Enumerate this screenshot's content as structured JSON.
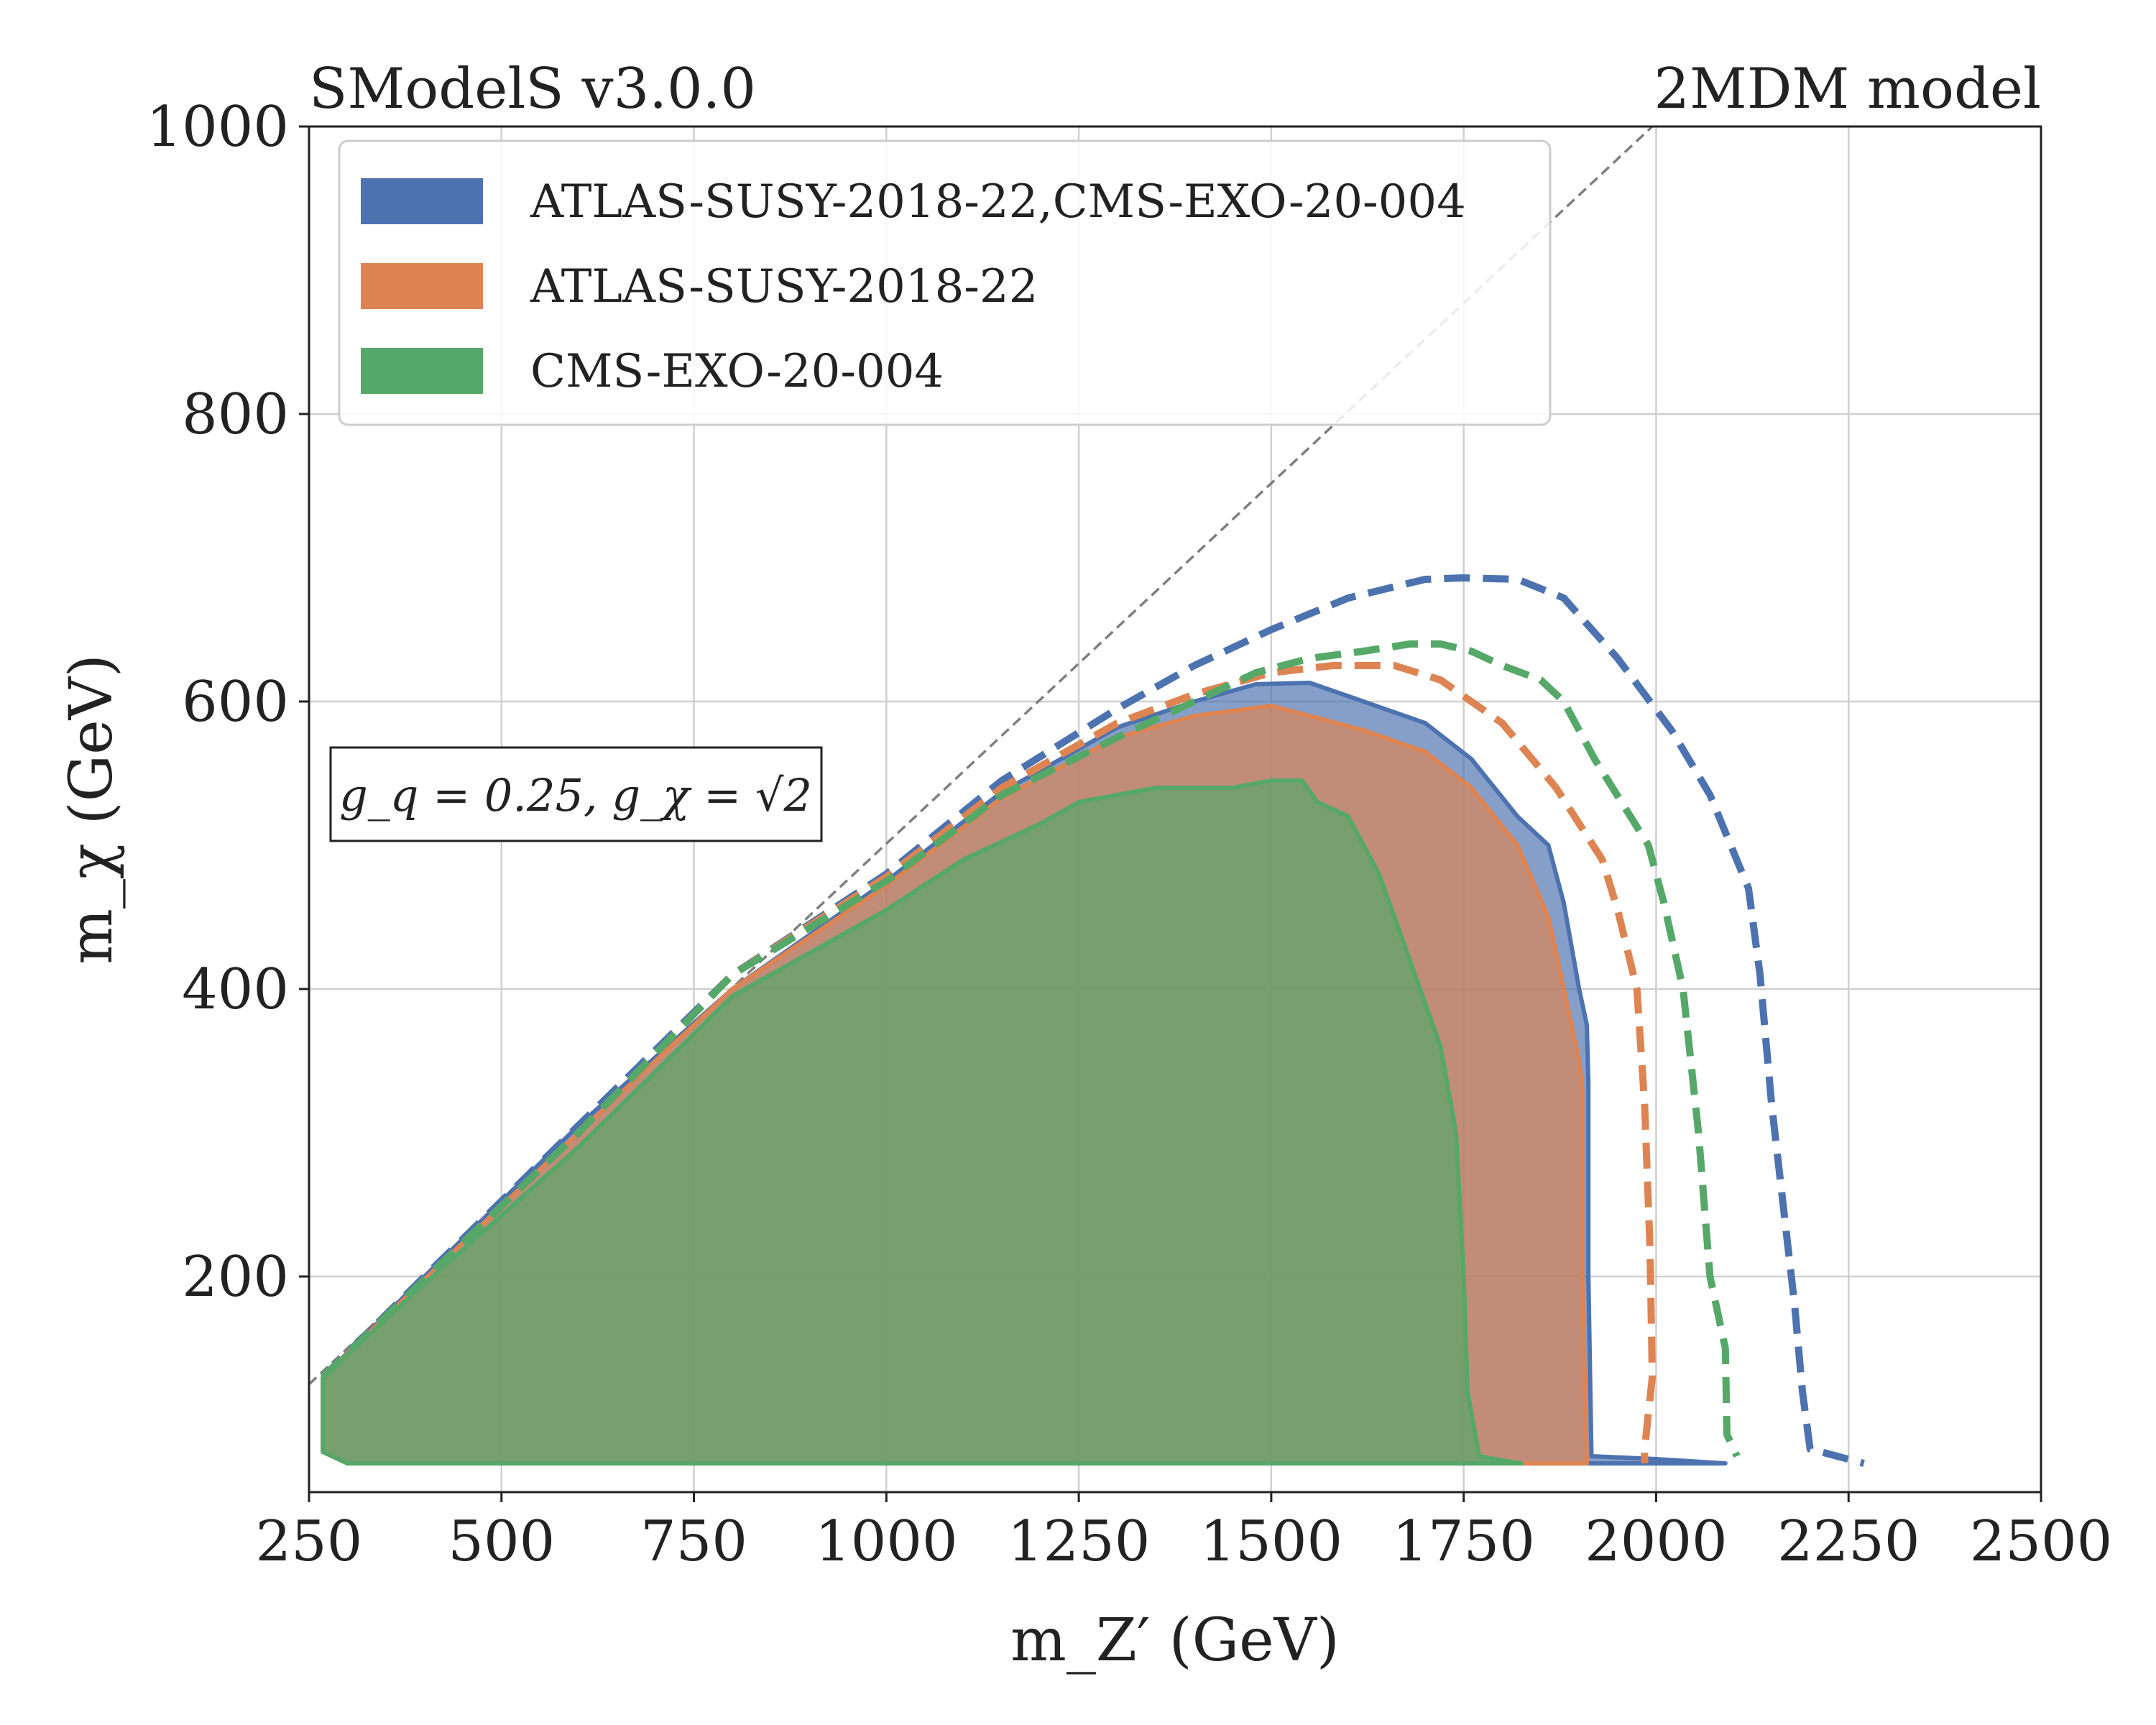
{
  "chart_data": {
    "type": "area",
    "title_left": "SModelS v3.0.0",
    "title_right": "2MDM model",
    "xlabel": "m_Z′ (GeV)",
    "ylabel": "m_χ (GeV)",
    "xlim": [
      250,
      2500
    ],
    "ylim": [
      50,
      1000
    ],
    "xticks": [
      250,
      500,
      750,
      1000,
      1250,
      1500,
      1750,
      2000,
      2250,
      2500
    ],
    "yticks": [
      200,
      400,
      600,
      800,
      1000
    ],
    "grid": true,
    "legend_position": "top-left",
    "annotation": "g_q = 0.25, g_χ = √2",
    "diagonal": {
      "x": [
        250,
        1995
      ],
      "y": [
        125,
        1000
      ],
      "color": "#7f7f7f"
    },
    "series": [
      {
        "name": "ATLAS-SUSY-2018-22,CMS-EXO-20-004",
        "color": "#4C72B0",
        "excluded_region": {
          "x": [
            268,
            268,
            400,
            600,
            800,
            1000,
            1150,
            1300,
            1400,
            1480,
            1550,
            1620,
            1700,
            1760,
            1820,
            1860,
            1880,
            1900,
            1910,
            1912,
            1912,
            1916,
            2000,
            2090,
            300,
            268
          ],
          "y": [
            125,
            130,
            200,
            305,
            400,
            475,
            537,
            582,
            600,
            612,
            613,
            600,
            585,
            560,
            520,
            500,
            460,
            400,
            375,
            335,
            200,
            75,
            73,
            70,
            70,
            78
          ]
        },
        "expected_limit": {
          "x": [
            268,
            400,
            600,
            800,
            1000,
            1150,
            1300,
            1400,
            1500,
            1600,
            1700,
            1750,
            1820,
            1880,
            1950,
            2020,
            2070,
            2120,
            2135,
            2150,
            2180,
            2190,
            2200,
            2270
          ],
          "y": [
            130,
            200,
            305,
            410,
            480,
            545,
            595,
            625,
            650,
            672,
            685,
            686,
            685,
            672,
            630,
            580,
            535,
            470,
            410,
            320,
            180,
            120,
            80,
            70
          ]
        }
      },
      {
        "name": "ATLAS-SUSY-2018-22",
        "color": "#DD8452",
        "excluded_region": {
          "x": [
            268,
            268,
            400,
            600,
            800,
            1000,
            1150,
            1300,
            1400,
            1500,
            1550,
            1620,
            1700,
            1760,
            1820,
            1860,
            1880,
            1900,
            1904,
            1904,
            1910,
            300,
            268
          ],
          "y": [
            125,
            130,
            198,
            300,
            400,
            472,
            533,
            575,
            590,
            597,
            590,
            580,
            565,
            540,
            500,
            450,
            400,
            350,
            330,
            200,
            70,
            70,
            78
          ]
        },
        "expected_limit": {
          "x": [
            268,
            400,
            600,
            800,
            1000,
            1150,
            1300,
            1400,
            1500,
            1580,
            1660,
            1720,
            1800,
            1870,
            1930,
            1950,
            1975,
            1985,
            1992,
            1995,
            1985,
            1985
          ],
          "y": [
            130,
            198,
            300,
            410,
            478,
            540,
            585,
            605,
            620,
            625,
            625,
            615,
            585,
            540,
            490,
            455,
            400,
            320,
            220,
            130,
            80,
            70
          ]
        }
      },
      {
        "name": "CMS-EXO-20-004",
        "color": "#55A868",
        "excluded_region": {
          "x": [
            268,
            268,
            400,
            600,
            800,
            1000,
            1100,
            1200,
            1250,
            1350,
            1450,
            1500,
            1540,
            1560,
            1600,
            1640,
            1680,
            1720,
            1740,
            1750,
            1755,
            1770,
            1790,
            1825,
            300,
            268
          ],
          "y": [
            125,
            130,
            195,
            290,
            395,
            455,
            490,
            515,
            530,
            540,
            540,
            545,
            545,
            530,
            520,
            480,
            420,
            360,
            300,
            200,
            120,
            75,
            73,
            70,
            70,
            78
          ]
        },
        "expected_limit": {
          "x": [
            268,
            400,
            600,
            800,
            1000,
            1150,
            1300,
            1400,
            1480,
            1550,
            1620,
            1680,
            1720,
            1760,
            1800,
            1850,
            1880,
            1920,
            1990,
            2010,
            2035,
            2055,
            2070,
            2090,
            2092,
            2105
          ],
          "y": [
            130,
            198,
            300,
            410,
            475,
            535,
            575,
            600,
            620,
            630,
            635,
            640,
            640,
            635,
            625,
            615,
            600,
            560,
            500,
            460,
            400,
            300,
            200,
            150,
            90,
            75
          ]
        }
      }
    ]
  }
}
